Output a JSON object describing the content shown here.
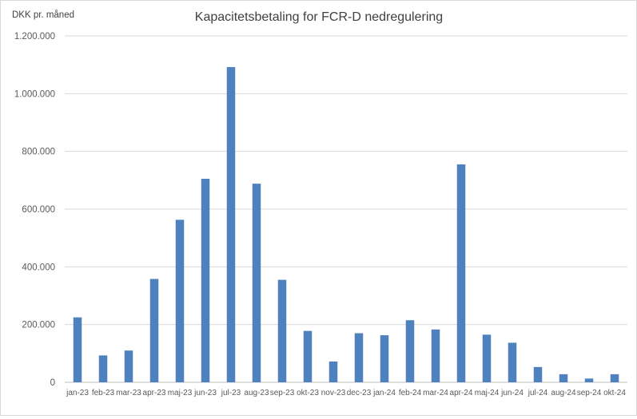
{
  "chart_data": {
    "type": "bar",
    "title": "Kapacitetsbetaling for FCR-D nedregulering",
    "ylabel": "DKK pr. måned",
    "xlabel": "",
    "ylim": [
      0,
      1200000
    ],
    "yticks": [
      0,
      200000,
      400000,
      600000,
      800000,
      1000000,
      1200000
    ],
    "ytick_labels": [
      "0",
      "200.000",
      "400.000",
      "600.000",
      "800.000",
      "1.000.000",
      "1.200.000"
    ],
    "grid": true,
    "bar_color": "#4f81bd",
    "categories": [
      "jan-23",
      "feb-23",
      "mar-23",
      "apr-23",
      "maj-23",
      "jun-23",
      "jul-23",
      "aug-23",
      "sep-23",
      "okt-23",
      "nov-23",
      "dec-23",
      "jan-24",
      "feb-24",
      "mar-24",
      "apr-24",
      "maj-24",
      "jun-24",
      "jul-24",
      "aug-24",
      "sep-24",
      "okt-24"
    ],
    "values": [
      225000,
      93000,
      110000,
      358000,
      563000,
      705000,
      1092000,
      688000,
      355000,
      178000,
      72000,
      170000,
      163000,
      215000,
      183000,
      755000,
      165000,
      137000,
      53000,
      28000,
      13000,
      28000
    ]
  }
}
